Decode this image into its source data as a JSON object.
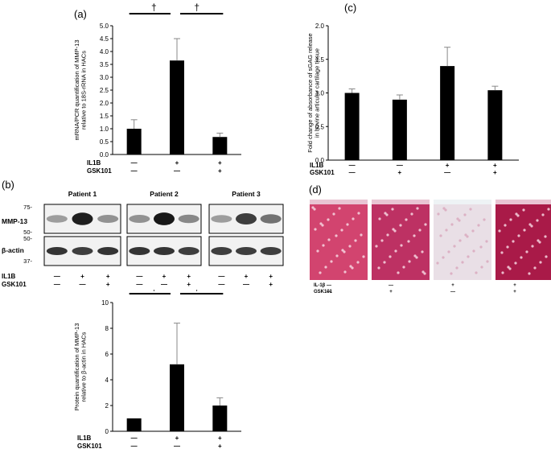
{
  "panels": {
    "a": "(a)",
    "b": "(b)",
    "c": "(c)",
    "d": "(d)"
  },
  "chart_data": [
    {
      "id": "a",
      "type": "bar",
      "categories": [
        "1",
        "2",
        "3"
      ],
      "values": [
        1.0,
        3.65,
        0.68
      ],
      "errors": [
        0.35,
        0.85,
        0.15
      ],
      "ylim": [
        0,
        5
      ],
      "yticks": [
        "0.0",
        "0.5",
        "1.0",
        "1.5",
        "2.0",
        "2.5",
        "3.0",
        "3.5",
        "4.0",
        "4.5",
        "5.0"
      ],
      "ylabel_line1": "mRNA/PCR quantification of MMP-13",
      "ylabel_line2": "relative to 18S-rRNA in HACs",
      "significance": [
        "†",
        "†"
      ],
      "row_labels": [
        "IL1B",
        "GSK101"
      ],
      "conditions": [
        [
          "—",
          "—"
        ],
        [
          "+",
          "—"
        ],
        [
          "+",
          "+"
        ]
      ]
    },
    {
      "id": "b_quant",
      "type": "bar",
      "categories": [
        "1",
        "2",
        "3"
      ],
      "values": [
        1.0,
        5.2,
        2.0
      ],
      "errors": [
        0.0,
        3.2,
        0.6
      ],
      "ylim": [
        0,
        10
      ],
      "yticks": [
        "0",
        "2",
        "4",
        "6",
        "8",
        "10"
      ],
      "ylabel_line1": "Protein quantification of MMP-13",
      "ylabel_line2": "relative to β-actin in HACs",
      "significance": [
        "†",
        "†"
      ],
      "row_labels": [
        "IL1B",
        "GSK101"
      ],
      "conditions": [
        [
          "—",
          "—"
        ],
        [
          "+",
          "—"
        ],
        [
          "+",
          "+"
        ]
      ]
    },
    {
      "id": "c",
      "type": "bar",
      "categories": [
        "1",
        "2",
        "3",
        "4"
      ],
      "values": [
        1.0,
        0.9,
        1.4,
        1.04
      ],
      "errors": [
        0.06,
        0.07,
        0.28,
        0.06
      ],
      "ylim": [
        0,
        2
      ],
      "yticks": [
        "0.0",
        "0.5",
        "1.0",
        "1.5",
        "2.0"
      ],
      "ylabel_line1": "Fold change of absorbance of sGAG release",
      "ylabel_line2": "in bovine articular cartilage tissue",
      "row_labels": [
        "IL1B",
        "GSK101"
      ],
      "conditions": [
        [
          "—",
          "—"
        ],
        [
          "—",
          "+"
        ],
        [
          "+",
          "—"
        ],
        [
          "+",
          "+"
        ]
      ]
    }
  ],
  "blot": {
    "patients": [
      "Patient 1",
      "Patient 2",
      "Patient 3"
    ],
    "rows": [
      "MMP-13",
      "β-actin"
    ],
    "markers": [
      "75-",
      "50-",
      "50-",
      "37-"
    ],
    "row_labels": [
      "IL1B",
      "GSK101"
    ],
    "conditions": [
      [
        "—",
        "—"
      ],
      [
        "+",
        "—"
      ],
      [
        "+",
        "+"
      ]
    ],
    "mmp13_intensity": [
      [
        0.35,
        0.95,
        0.4
      ],
      [
        0.4,
        0.98,
        0.45
      ],
      [
        0.35,
        0.8,
        0.55
      ]
    ],
    "actin_intensity": [
      [
        0.85,
        0.8,
        0.85
      ],
      [
        0.85,
        0.85,
        0.8
      ],
      [
        0.8,
        0.8,
        0.8
      ]
    ]
  },
  "histology": {
    "row_labels": [
      "IL-1β",
      "GSK101"
    ],
    "conditions": [
      [
        "—",
        "—"
      ],
      [
        "—",
        "+"
      ],
      [
        "+",
        "—"
      ],
      [
        "+",
        "+"
      ]
    ],
    "colors": [
      "#d2446f",
      "#bd3163",
      "#e9dfe6",
      "#a91a48"
    ]
  }
}
